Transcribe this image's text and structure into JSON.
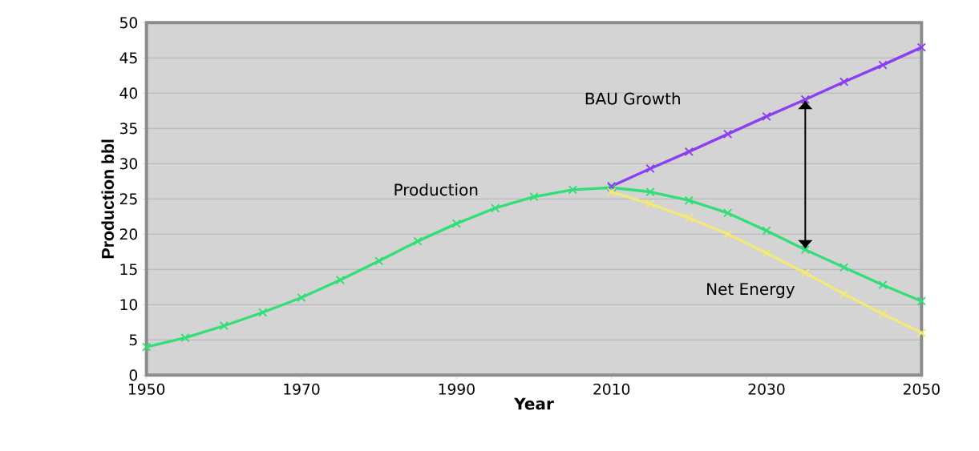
{
  "chart_data": {
    "type": "line",
    "xlabel": "Year",
    "ylabel": "Production bbl",
    "xlim": [
      1950,
      2050
    ],
    "xticks": [
      1950,
      1970,
      1990,
      2010,
      2030,
      2050
    ],
    "ylim": [
      0,
      50
    ],
    "yticks": [
      0,
      5,
      10,
      15,
      20,
      25,
      30,
      35,
      40,
      45,
      50
    ],
    "grid": "y",
    "marker": "cross",
    "line_style": "solid",
    "series": [
      {
        "name": "Production",
        "color": "#33dd77",
        "x": [
          1950,
          1955,
          1960,
          1965,
          1970,
          1975,
          1980,
          1985,
          1990,
          1995,
          2000,
          2005,
          2010,
          2015,
          2020,
          2025,
          2030,
          2035,
          2040,
          2045,
          2050
        ],
        "values": [
          4.0,
          5.3,
          7.0,
          8.9,
          11.0,
          13.5,
          16.2,
          19.0,
          21.5,
          23.7,
          25.3,
          26.3,
          26.6,
          26.0,
          24.8,
          23.0,
          20.5,
          17.8,
          15.3,
          12.8,
          10.5
        ]
      },
      {
        "name": "BAU Growth",
        "color": "#8a3ff0",
        "x": [
          2010,
          2015,
          2020,
          2025,
          2030,
          2035,
          2040,
          2045,
          2050
        ],
        "values": [
          26.8,
          29.3,
          31.7,
          34.2,
          36.7,
          39.1,
          41.6,
          44.0,
          46.5
        ]
      },
      {
        "name": "Net Energy",
        "color": "#f3e87a",
        "x": [
          2010,
          2015,
          2020,
          2025,
          2030,
          2035,
          2040,
          2045,
          2050
        ],
        "values": [
          26.0,
          24.3,
          22.3,
          20.0,
          17.3,
          14.5,
          11.5,
          8.7,
          6.0
        ]
      }
    ]
  }
}
